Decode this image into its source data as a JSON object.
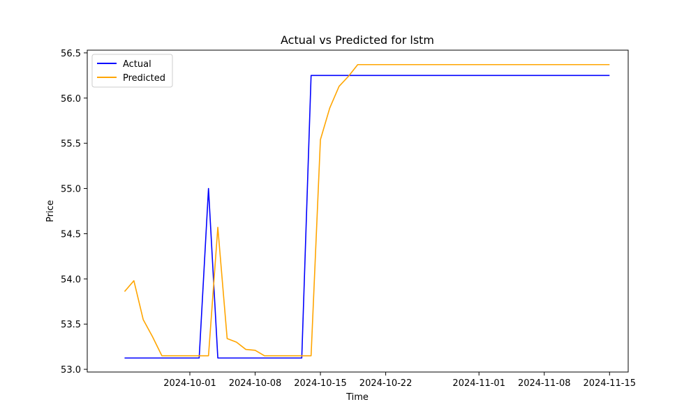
{
  "chart_data": {
    "type": "line",
    "title": "Actual vs Predicted for lstm",
    "xlabel": "Time",
    "ylabel": "Price",
    "x_dates": [
      "2024-09-24",
      "2024-09-25",
      "2024-09-26",
      "2024-09-27",
      "2024-09-28",
      "2024-09-29",
      "2024-09-30",
      "2024-10-01",
      "2024-10-02",
      "2024-10-03",
      "2024-10-04",
      "2024-10-05",
      "2024-10-06",
      "2024-10-07",
      "2024-10-08",
      "2024-10-09",
      "2024-10-10",
      "2024-10-11",
      "2024-10-12",
      "2024-10-13",
      "2024-10-14",
      "2024-10-15",
      "2024-10-16",
      "2024-10-17",
      "2024-10-18",
      "2024-10-19",
      "2024-11-15"
    ],
    "series": [
      {
        "name": "Actual",
        "color": "#0000ff",
        "values": [
          53.125,
          53.125,
          53.125,
          53.125,
          53.125,
          53.125,
          53.125,
          53.125,
          53.125,
          55.0,
          53.125,
          53.125,
          53.125,
          53.125,
          53.125,
          53.125,
          53.125,
          53.125,
          53.125,
          53.125,
          56.25,
          56.25,
          56.25,
          56.25,
          56.25,
          56.25,
          56.25
        ]
      },
      {
        "name": "Predicted",
        "color": "#ffa500",
        "values": [
          53.86,
          53.98,
          53.55,
          53.36,
          53.15,
          53.15,
          53.15,
          53.15,
          53.15,
          53.15,
          54.57,
          53.34,
          53.3,
          53.22,
          53.21,
          53.15,
          53.15,
          53.15,
          53.15,
          53.15,
          53.15,
          55.54,
          55.89,
          56.13,
          56.24,
          56.37,
          56.37
        ]
      }
    ],
    "xticks": [
      "2024-10-01",
      "2024-10-08",
      "2024-10-15",
      "2024-10-22",
      "2024-11-01",
      "2024-11-08",
      "2024-11-15"
    ],
    "yticks": [
      53.0,
      53.5,
      54.0,
      54.5,
      55.0,
      55.5,
      56.0,
      56.5
    ],
    "xlim": [
      "2024-09-20",
      "2024-11-17"
    ],
    "ylim": [
      52.97,
      56.53
    ],
    "legend": "upper-left",
    "grid": false
  }
}
